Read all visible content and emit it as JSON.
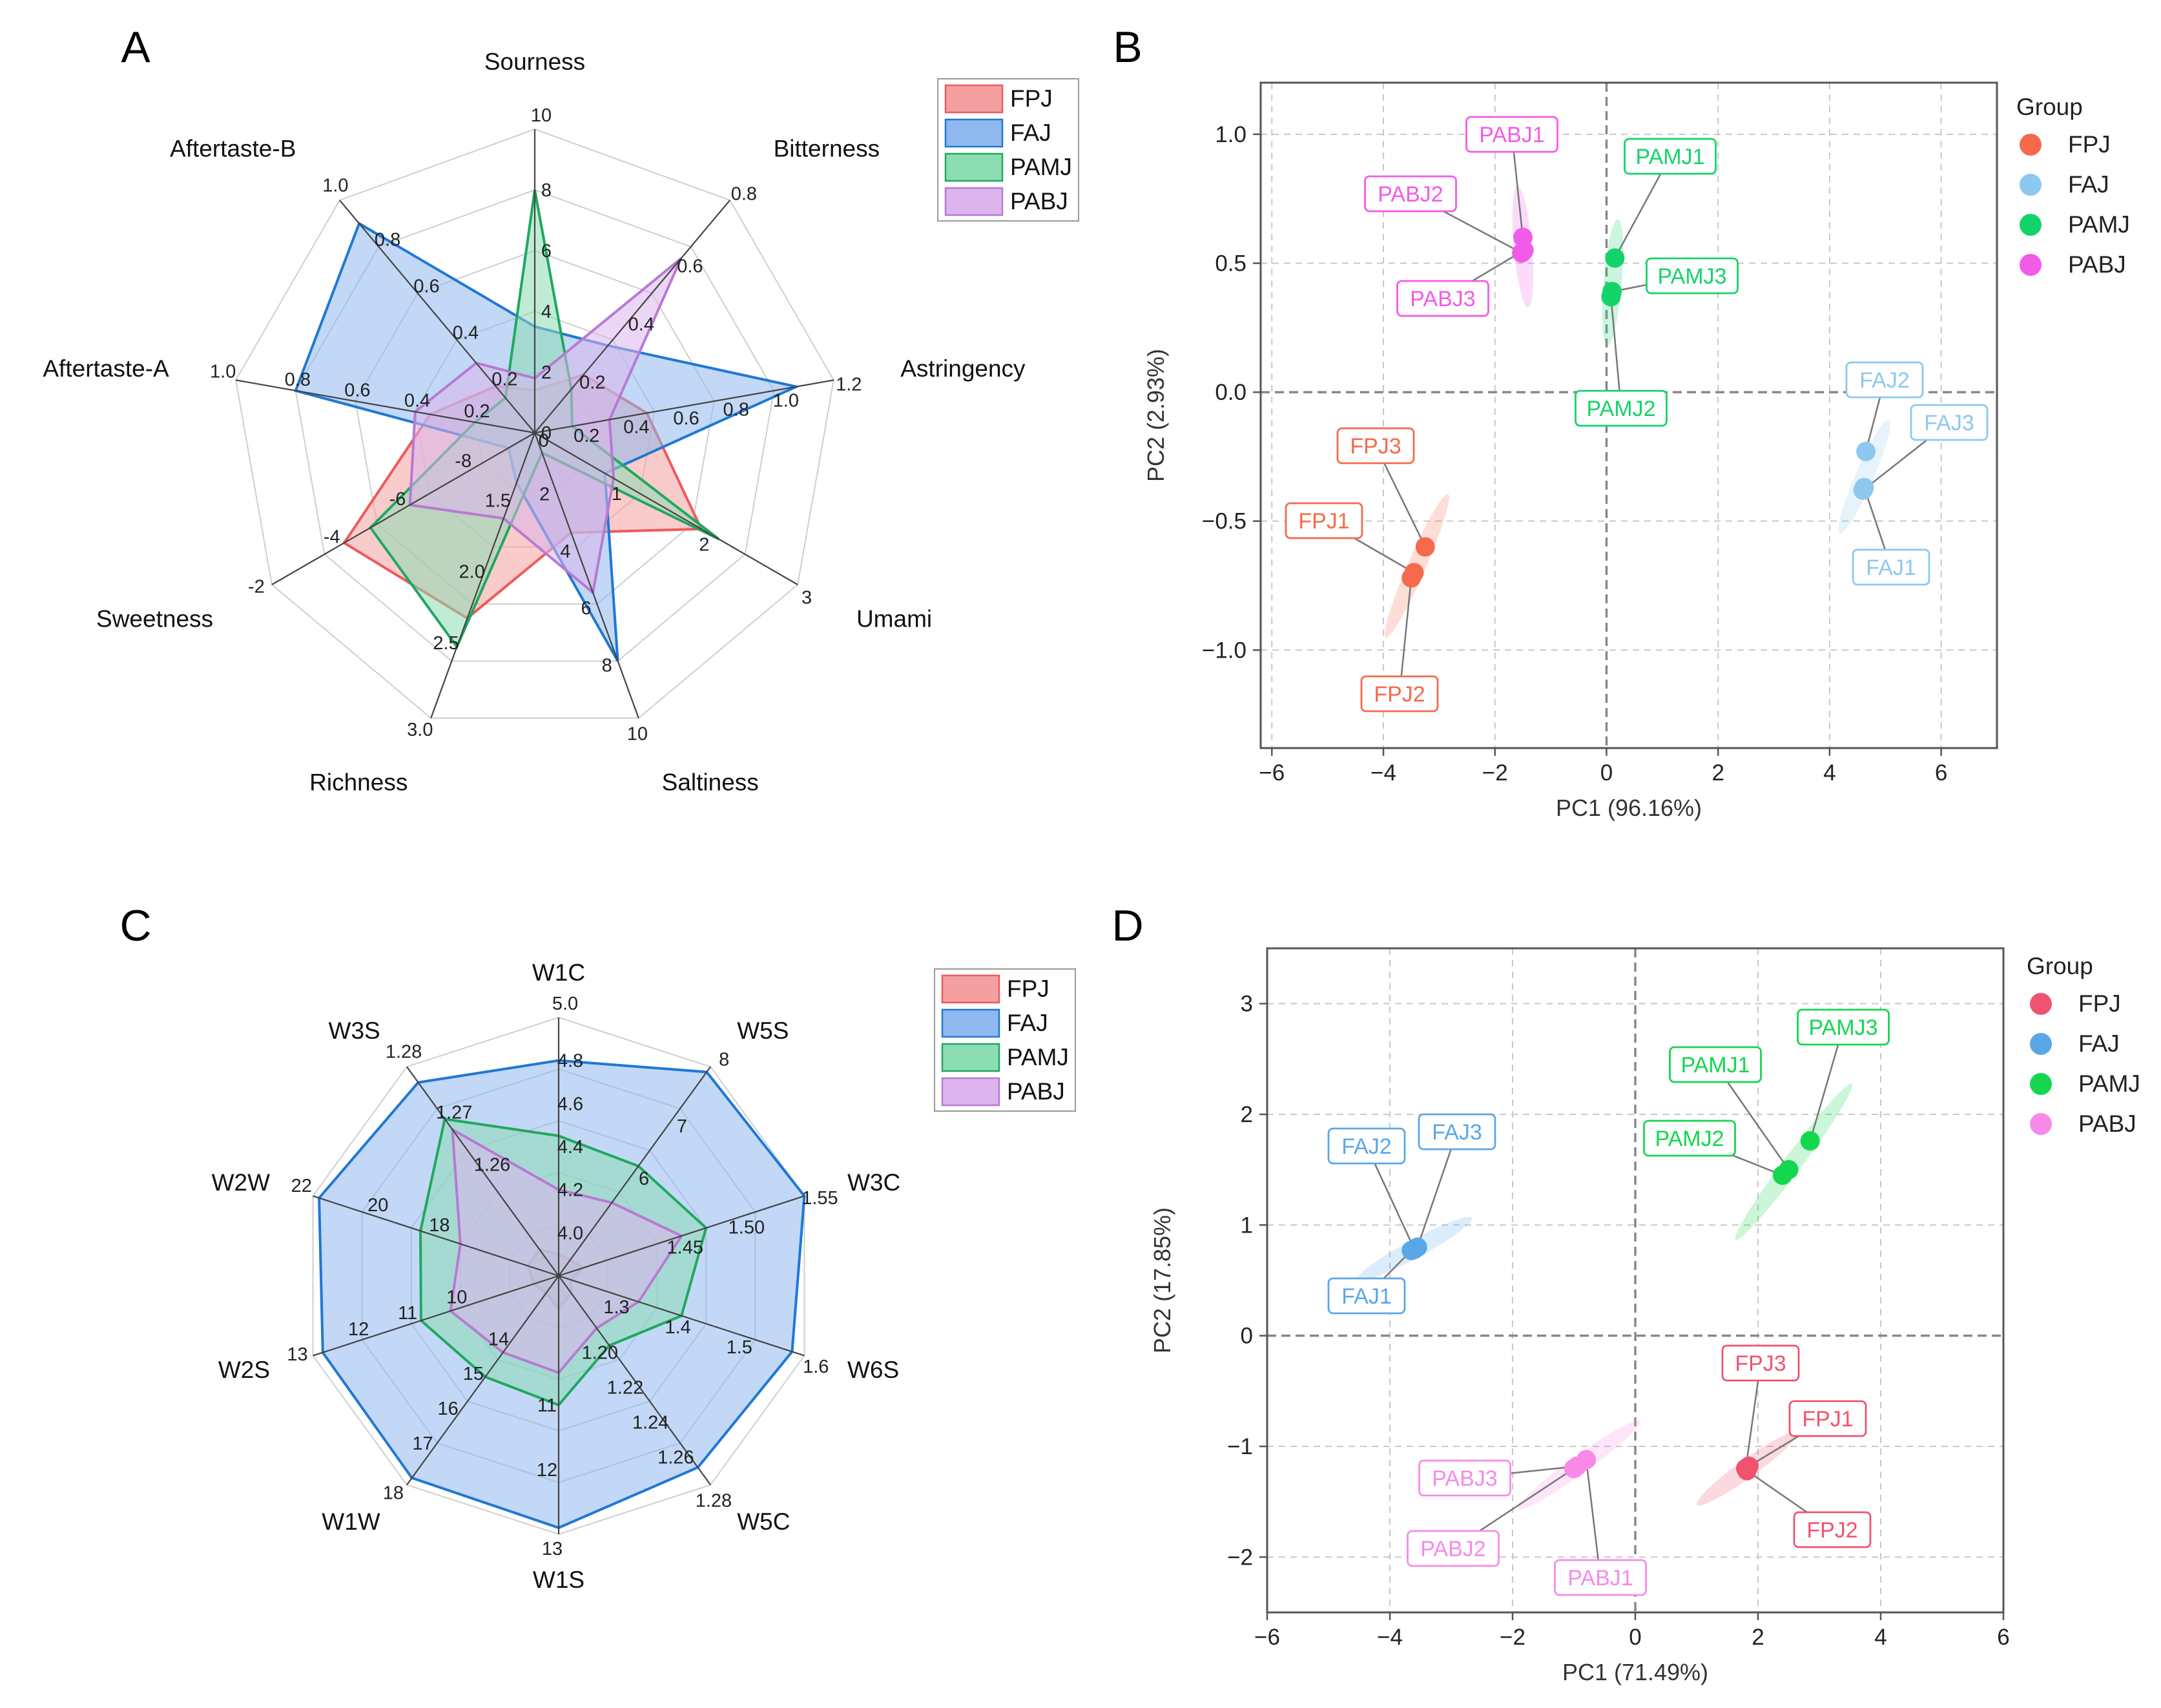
{
  "chart_data": [
    {
      "panel": "A",
      "type": "radar",
      "axes": [
        {
          "name": "Sourness",
          "ticks": [
            "0",
            "2",
            "4",
            "6",
            "8",
            "10"
          ],
          "range": [
            0,
            10
          ]
        },
        {
          "name": "Bitterness",
          "ticks": [
            "0",
            "0.2",
            "0.4",
            "0.6",
            "0.8"
          ],
          "range": [
            0,
            0.8
          ]
        },
        {
          "name": "Astringency",
          "ticks": [
            "0.2",
            "0.4",
            "0.6",
            "0.8",
            "1.0",
            "1.2"
          ],
          "range": [
            0,
            1.2
          ]
        },
        {
          "name": "Umami",
          "ticks": [
            "1",
            "2",
            "3"
          ],
          "range": [
            0,
            3
          ]
        },
        {
          "name": "Saltiness",
          "ticks": [
            "2",
            "4",
            "6",
            "8",
            "10"
          ],
          "range": [
            0,
            10
          ]
        },
        {
          "name": "Richness",
          "ticks": [
            "1.5",
            "2.0",
            "2.5",
            "3.0"
          ],
          "range": [
            1.0,
            3.0
          ]
        },
        {
          "name": "Sweetness",
          "ticks": [
            "-8",
            "-6",
            "-4",
            "-2"
          ],
          "range": [
            -10,
            -2
          ]
        },
        {
          "name": "Aftertaste-A",
          "ticks": [
            "0.2",
            "0.4",
            "0.6",
            "0.8",
            "1.0"
          ],
          "range": [
            0,
            1.0
          ]
        },
        {
          "name": "Aftertaste-B",
          "ticks": [
            "0.2",
            "0.4",
            "0.6",
            "0.8",
            "1.0"
          ],
          "range": [
            0,
            1.0
          ]
        }
      ],
      "legend": [
        "FPJ",
        "FAJ",
        "PAMJ",
        "PABJ"
      ],
      "series": [
        {
          "name": "FPJ",
          "values": [
            1.4,
            0.2,
            0.45,
            1.9,
            3.5,
            2.3,
            -4.2,
            0.35,
            0.2
          ]
        },
        {
          "name": "FAJ",
          "values": [
            3.5,
            0.3,
            1.05,
            0.8,
            8.0,
            1.35,
            -9.2,
            0.8,
            0.9
          ]
        },
        {
          "name": "PAMJ",
          "values": [
            8.0,
            0.15,
            0.15,
            2.1,
            0.7,
            2.5,
            -5.0,
            0.2,
            0.15
          ]
        },
        {
          "name": "PABJ",
          "values": [
            1.8,
            0.6,
            0.3,
            0.9,
            5.6,
            1.6,
            -6.2,
            0.4,
            0.3
          ]
        }
      ]
    },
    {
      "panel": "B",
      "type": "scatter",
      "xlabel": "PC1 (96.16%)",
      "ylabel": "PC2 (2.93%)",
      "xlim": [
        -6.2,
        7.0
      ],
      "ylim": [
        -1.38,
        1.2
      ],
      "xticks": [
        "−6",
        "−4",
        "−2",
        "0",
        "2",
        "4",
        "6"
      ],
      "xtick_values": [
        -6,
        -4,
        -2,
        0,
        2,
        4,
        6
      ],
      "yticks": [
        "1.0",
        "0.5",
        "0.0",
        "−0.5",
        "−1.0"
      ],
      "ytick_values": [
        1.0,
        0.5,
        0.0,
        -0.5,
        -1.0
      ],
      "legend_title": "Group",
      "series": [
        {
          "name": "FPJ",
          "points": [
            {
              "label": "FPJ1",
              "x": -3.45,
              "y": -0.7
            },
            {
              "label": "FPJ2",
              "x": -3.5,
              "y": -0.72
            },
            {
              "label": "FPJ3",
              "x": -3.25,
              "y": -0.6
            }
          ]
        },
        {
          "name": "FAJ",
          "points": [
            {
              "label": "FAJ1",
              "x": 4.62,
              "y": -0.37
            },
            {
              "label": "FAJ2",
              "x": 4.65,
              "y": -0.23
            },
            {
              "label": "FAJ3",
              "x": 4.6,
              "y": -0.38
            }
          ]
        },
        {
          "name": "PAMJ",
          "points": [
            {
              "label": "PAMJ1",
              "x": 0.15,
              "y": 0.52
            },
            {
              "label": "PAMJ2",
              "x": 0.08,
              "y": 0.37
            },
            {
              "label": "PAMJ3",
              "x": 0.1,
              "y": 0.39
            }
          ]
        },
        {
          "name": "PABJ",
          "points": [
            {
              "label": "PABJ1",
              "x": -1.5,
              "y": 0.6
            },
            {
              "label": "PABJ2",
              "x": -1.52,
              "y": 0.54
            },
            {
              "label": "PABJ3",
              "x": -1.48,
              "y": 0.55
            }
          ]
        }
      ]
    },
    {
      "panel": "C",
      "type": "radar",
      "axes": [
        {
          "name": "W1C",
          "ticks": [
            "4.0",
            "4.2",
            "4.4",
            "4.6",
            "4.8",
            "5.0"
          ],
          "range": [
            3.8,
            5.0
          ]
        },
        {
          "name": "W5S",
          "ticks": [
            "6",
            "7",
            "8"
          ],
          "range": [
            4,
            8
          ]
        },
        {
          "name": "W3C",
          "ticks": [
            "1.45",
            "1.50",
            "1.55"
          ],
          "range": [
            1.35,
            1.55
          ]
        },
        {
          "name": "W6S",
          "ticks": [
            "1.3",
            "1.4",
            "1.5",
            "1.6"
          ],
          "range": [
            1.2,
            1.6
          ]
        },
        {
          "name": "W5C",
          "ticks": [
            "1.20",
            "1.22",
            "1.24",
            "1.26",
            "1.28"
          ],
          "range": [
            1.16,
            1.28
          ]
        },
        {
          "name": "W1S",
          "ticks": [
            "11",
            "12",
            "13"
          ],
          "range": [
            9,
            13
          ]
        },
        {
          "name": "W1W",
          "ticks": [
            "14",
            "15",
            "16",
            "17",
            "18"
          ],
          "range": [
            12,
            18
          ]
        },
        {
          "name": "W2S",
          "ticks": [
            "10",
            "11",
            "12",
            "13"
          ],
          "range": [
            8,
            13
          ]
        },
        {
          "name": "W2W",
          "ticks": [
            "18",
            "20",
            "22"
          ],
          "range": [
            14,
            22
          ]
        },
        {
          "name": "W3S",
          "ticks": [
            "1.26",
            "1.27",
            "1.28"
          ],
          "range": [
            1.24,
            1.28
          ]
        }
      ],
      "legend": [
        "FPJ",
        "FAJ",
        "PAMJ",
        "PABJ"
      ],
      "series": [
        {
          "name": "FPJ",
          "values": [
            3.9,
            4.3,
            1.37,
            1.22,
            1.17,
            9.5,
            12.5,
            8.5,
            15.0,
            1.245
          ]
        },
        {
          "name": "FAJ",
          "values": [
            4.8,
            7.9,
            1.55,
            1.58,
            1.27,
            12.9,
            17.8,
            12.8,
            21.8,
            1.277
          ]
        },
        {
          "name": "PAMJ",
          "values": [
            4.45,
            6.1,
            1.47,
            1.4,
            1.2,
            11.0,
            14.9,
            10.8,
            18.5,
            1.27
          ]
        },
        {
          "name": "PABJ",
          "values": [
            4.2,
            5.4,
            1.45,
            1.33,
            1.19,
            10.5,
            14.2,
            10.2,
            17.2,
            1.268
          ]
        }
      ]
    },
    {
      "panel": "D",
      "type": "scatter",
      "xlabel": "PC1 (71.49%)",
      "ylabel": "PC2 (17.85%)",
      "xlim": [
        -6.0,
        6.0
      ],
      "ylim": [
        -2.5,
        3.5
      ],
      "xticks": [
        "−6",
        "−4",
        "−2",
        "0",
        "2",
        "4",
        "6"
      ],
      "xtick_values": [
        -6,
        -4,
        -2,
        0,
        2,
        4,
        6
      ],
      "yticks": [
        "3",
        "2",
        "1",
        "0",
        "−1",
        "−2"
      ],
      "ytick_values": [
        3,
        2,
        1,
        0,
        -1,
        -2
      ],
      "legend_title": "Group",
      "series": [
        {
          "name": "FPJ",
          "points": [
            {
              "label": "FPJ1",
              "x": 1.85,
              "y": -1.18
            },
            {
              "label": "FPJ2",
              "x": 1.82,
              "y": -1.22
            },
            {
              "label": "FPJ3",
              "x": 1.8,
              "y": -1.2
            }
          ]
        },
        {
          "name": "FAJ",
          "points": [
            {
              "label": "FAJ1",
              "x": -3.65,
              "y": 0.77
            },
            {
              "label": "FAJ2",
              "x": -3.6,
              "y": 0.78
            },
            {
              "label": "FAJ3",
              "x": -3.55,
              "y": 0.8
            }
          ]
        },
        {
          "name": "PAMJ",
          "points": [
            {
              "label": "PAMJ1",
              "x": 2.5,
              "y": 1.5
            },
            {
              "label": "PAMJ2",
              "x": 2.4,
              "y": 1.45
            },
            {
              "label": "PAMJ3",
              "x": 2.85,
              "y": 1.76
            }
          ]
        },
        {
          "name": "PABJ",
          "points": [
            {
              "label": "PABJ1",
              "x": -0.8,
              "y": -1.12
            },
            {
              "label": "PABJ2",
              "x": -1.0,
              "y": -1.2
            },
            {
              "label": "PABJ3",
              "x": -0.95,
              "y": -1.18
            }
          ]
        }
      ]
    }
  ],
  "panel_labels": {
    "A": "A",
    "B": "B",
    "C": "C",
    "D": "D"
  },
  "legend_title": "Group",
  "colors": {
    "radar": {
      "FPJ": {
        "fill": "#f4a0a0",
        "stroke": "#ee5a5a"
      },
      "FAJ": {
        "fill": "#8fb8ef",
        "stroke": "#1f78d4"
      },
      "PAMJ": {
        "fill": "#8cdcb4",
        "stroke": "#1fa85f"
      },
      "PABJ": {
        "fill": "#ddb4ec",
        "stroke": "#b77ad2"
      }
    },
    "B": {
      "FPJ": "#f46a4b",
      "FAJ": "#8dc8ef",
      "PAMJ": "#14d36a",
      "PABJ": "#f25be8"
    },
    "D": {
      "FPJ": "#f0536f",
      "FAJ": "#5aa7e8",
      "PAMJ": "#14d74f",
      "PABJ": "#f78ae8"
    }
  }
}
